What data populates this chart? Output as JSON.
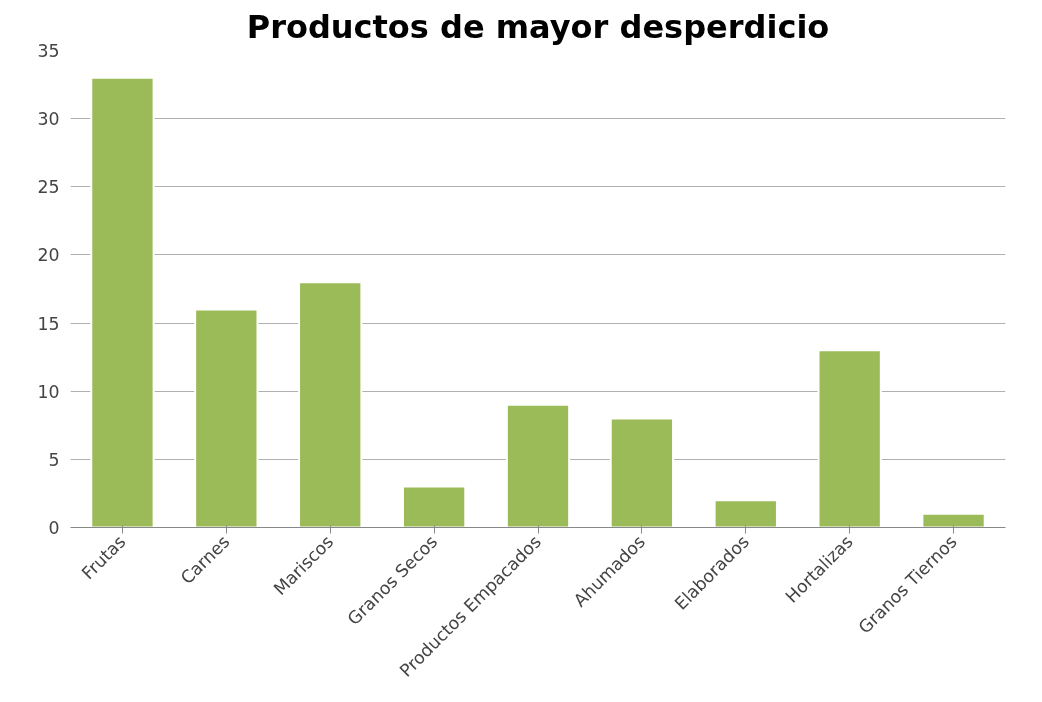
{
  "chart_data": {
    "type": "bar",
    "title": "Productos de mayor desperdicio",
    "categories": [
      "Frutas",
      "Carnes",
      "Mariscos",
      "Granos Secos",
      "Productos Empacados",
      "Ahumados",
      "Elaborados",
      "Hortalizas",
      "Granos Tiernos"
    ],
    "values": [
      33,
      16,
      18,
      3,
      9,
      8,
      2,
      13,
      1
    ],
    "color": "#9bbb59",
    "ylim": [
      0,
      35
    ],
    "yticks": [
      0,
      5,
      10,
      15,
      20,
      25,
      30,
      35
    ],
    "grid": "y"
  }
}
